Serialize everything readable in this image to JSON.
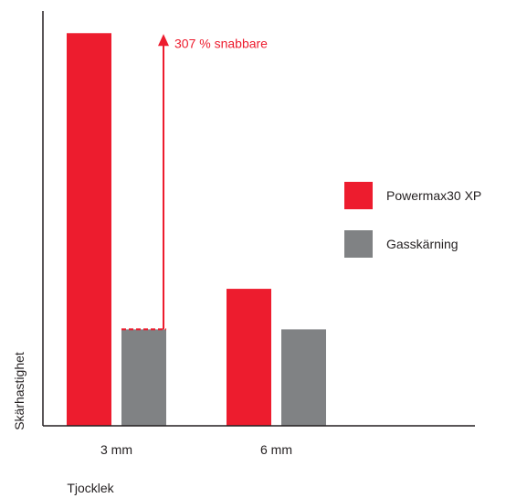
{
  "chart_data": {
    "type": "bar",
    "categories": [
      "3 mm",
      "6 mm"
    ],
    "series": [
      {
        "name": "Powermax30 XP",
        "values": [
          4.07,
          1.42
        ],
        "color": "#ed1c2e"
      },
      {
        "name": "Gasskärning",
        "values": [
          1.0,
          1.0
        ],
        "color": "#808284"
      }
    ],
    "xlabel": "Tjocklek",
    "ylabel": "Skärhastighet",
    "ylim": [
      0,
      4.3
    ],
    "grid": false,
    "legend": "right",
    "annotation": {
      "text": "307 % snabbare",
      "category": "3 mm",
      "from": 1.0,
      "to": 4.07,
      "color": "#ed1c2e"
    }
  }
}
